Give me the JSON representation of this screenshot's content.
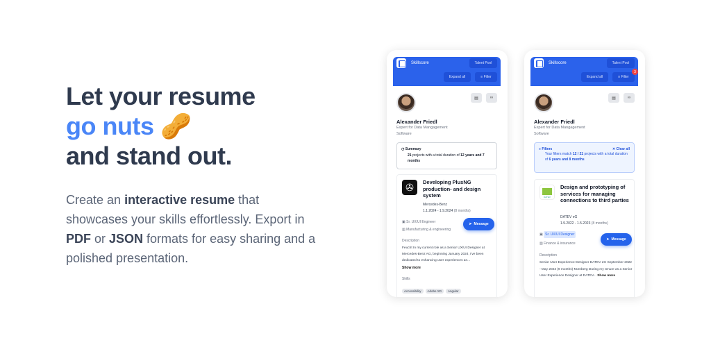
{
  "hero": {
    "line1": "Let your resume",
    "line2": "go nuts",
    "emoji": "🥜",
    "line3": "and stand out.",
    "desc": {
      "p1": "Create an ",
      "b1": "interactive resume",
      "p2": " that showcases your skills effortlessly. Export in ",
      "b2": "PDF",
      "p3": " or ",
      "b3": "JSON",
      "p4": " formats for easy sharing and a polished presentation."
    }
  },
  "colors": {
    "primary": "#2b62eb",
    "accent": "#4a86f7",
    "badge": "#ef4444"
  },
  "app": {
    "brand": "Skillscore",
    "talent_pool": "Talent Pool",
    "expand_all": "Expand all",
    "filter": "Filter",
    "filter_count": "3",
    "name": "Alexander Friedl",
    "title1": "Expert for Data Mangagement",
    "title2": "Software",
    "message": "Message"
  },
  "card1": {
    "summary_title": "Summary",
    "summary_n": "21",
    "summary_mid": " projects with a total duration of ",
    "summary_dur": "12 years and 7 months",
    "project": {
      "title": "Developing PlusNG production- and design system",
      "company": "Mercedes-Benz",
      "dates": "1.1.2024 - 1.9.2024",
      "duration": "(8 months)",
      "role": "Sr. UX/UI Engineer",
      "industry": "Manufacturing & engineering",
      "desc_label": "Description",
      "desc": "Feucht In my current role as a Senior UX/UI Designer at Mercedes-Benz AG, beginning January 2024, I've been dedicated to enhancing user experiences an...",
      "show_more": "Show more",
      "skills_label": "Skills",
      "skills": [
        "Accessibility",
        "Adobe XD",
        "Angular"
      ]
    }
  },
  "card2": {
    "filters_title": "Filters",
    "clear_all": "Clear all",
    "f1": "Your filters match ",
    "f_n": "12 / 21",
    "f2": " projects with a total duration of ",
    "f_dur": "6 years and 8 months",
    "project": {
      "title": "Design and prototyping of services for managing connections to third parties",
      "company": "DATEV eG",
      "dates": "1.9.2022 - 1.5.2023",
      "duration": "(8 months)",
      "role": "Sr. UX/UI Designer",
      "industry": "Finance & insurance",
      "desc_label": "Description",
      "desc": "Senior User Experience-Designer DATEV eG September 2022 - May 2023 (9 months) Nürnberg During my tenure as a Senior User Experience Designer at DATEV...",
      "show_more": "Show more",
      "logo_text": "DATEV"
    }
  }
}
